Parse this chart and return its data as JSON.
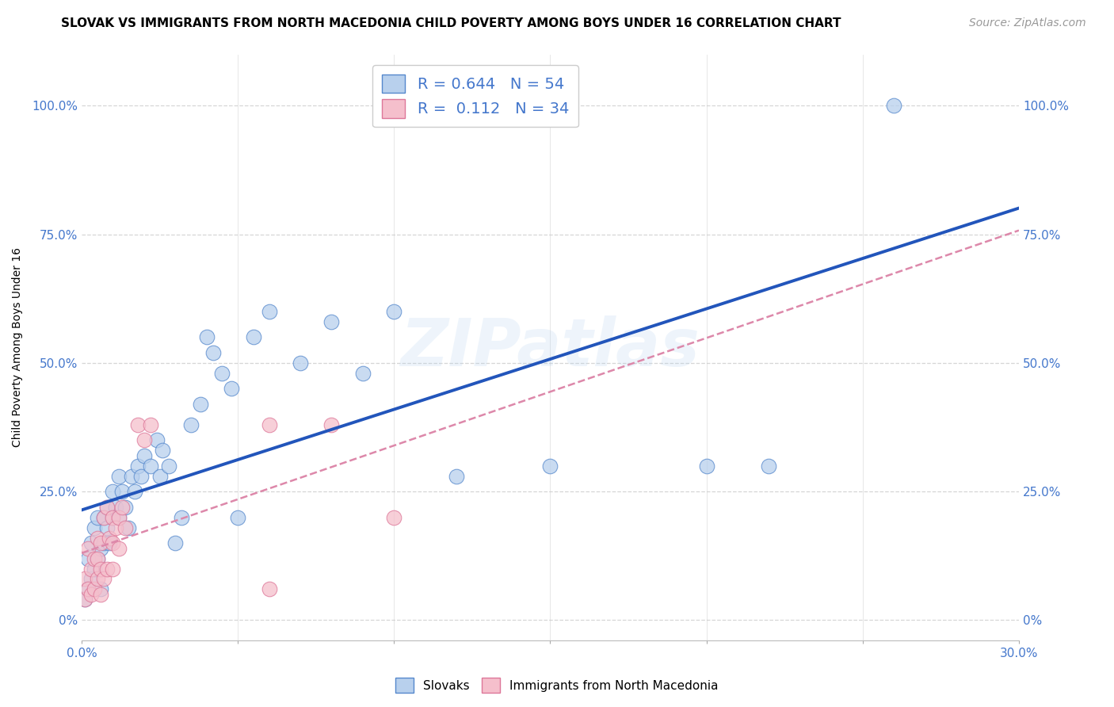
{
  "title": "SLOVAK VS IMMIGRANTS FROM NORTH MACEDONIA CHILD POVERTY AMONG BOYS UNDER 16 CORRELATION CHART",
  "source": "Source: ZipAtlas.com",
  "ylabel": "Child Poverty Among Boys Under 16",
  "xlim": [
    0.0,
    0.3
  ],
  "ylim": [
    -0.04,
    1.1
  ],
  "ytick_values": [
    0.0,
    0.25,
    0.5,
    0.75,
    1.0
  ],
  "ytick_labels": [
    "0%",
    "25.0%",
    "50.0%",
    "75.0%",
    "100.0%"
  ],
  "xtick_positions": [
    0.0,
    0.05,
    0.1,
    0.15,
    0.2,
    0.25,
    0.3
  ],
  "xtick_labels": [
    "0.0%",
    "",
    "",
    "",
    "",
    "",
    "30.0%"
  ],
  "grid_color": "#cccccc",
  "background_color": "#ffffff",
  "watermark_text": "ZIPatlas",
  "slovak_color": "#b8d0ed",
  "slovak_edge_color": "#5588cc",
  "nmacedonia_color": "#f5bfcc",
  "nmacedonia_edge_color": "#dd7799",
  "line_blue": "#2255bb",
  "line_pink_dashed": "#dd88aa",
  "tick_color": "#4477cc",
  "R_slovak": 0.644,
  "N_slovak": 54,
  "R_nmacedonia": 0.112,
  "N_nmacedonia": 34,
  "title_fontsize": 11,
  "axis_label_fontsize": 10,
  "tick_fontsize": 11,
  "legend_fontsize": 14,
  "source_fontsize": 10,
  "slovak_x": [
    0.001,
    0.002,
    0.002,
    0.003,
    0.003,
    0.004,
    0.004,
    0.005,
    0.005,
    0.006,
    0.006,
    0.007,
    0.007,
    0.008,
    0.008,
    0.009,
    0.01,
    0.01,
    0.011,
    0.012,
    0.012,
    0.013,
    0.014,
    0.015,
    0.016,
    0.017,
    0.018,
    0.019,
    0.02,
    0.022,
    0.024,
    0.025,
    0.026,
    0.028,
    0.03,
    0.032,
    0.035,
    0.038,
    0.04,
    0.042,
    0.045,
    0.048,
    0.05,
    0.055,
    0.06,
    0.07,
    0.08,
    0.09,
    0.1,
    0.12,
    0.15,
    0.2,
    0.22,
    0.26
  ],
  "slovak_y": [
    0.04,
    0.06,
    0.12,
    0.08,
    0.15,
    0.1,
    0.18,
    0.12,
    0.2,
    0.06,
    0.14,
    0.15,
    0.2,
    0.18,
    0.22,
    0.15,
    0.2,
    0.25,
    0.22,
    0.2,
    0.28,
    0.25,
    0.22,
    0.18,
    0.28,
    0.25,
    0.3,
    0.28,
    0.32,
    0.3,
    0.35,
    0.28,
    0.33,
    0.3,
    0.15,
    0.2,
    0.38,
    0.42,
    0.55,
    0.52,
    0.48,
    0.45,
    0.2,
    0.55,
    0.6,
    0.5,
    0.58,
    0.48,
    0.6,
    0.28,
    0.3,
    0.3,
    0.3,
    1.0
  ],
  "nmacedonia_x": [
    0.001,
    0.001,
    0.002,
    0.002,
    0.003,
    0.003,
    0.004,
    0.004,
    0.005,
    0.005,
    0.005,
    0.006,
    0.006,
    0.006,
    0.007,
    0.007,
    0.008,
    0.008,
    0.009,
    0.01,
    0.01,
    0.01,
    0.011,
    0.012,
    0.012,
    0.013,
    0.014,
    0.018,
    0.02,
    0.022,
    0.06,
    0.06,
    0.08,
    0.1
  ],
  "nmacedonia_y": [
    0.04,
    0.08,
    0.06,
    0.14,
    0.05,
    0.1,
    0.06,
    0.12,
    0.08,
    0.12,
    0.16,
    0.05,
    0.1,
    0.15,
    0.08,
    0.2,
    0.1,
    0.22,
    0.16,
    0.1,
    0.15,
    0.2,
    0.18,
    0.14,
    0.2,
    0.22,
    0.18,
    0.38,
    0.35,
    0.38,
    0.06,
    0.38,
    0.38,
    0.2
  ]
}
